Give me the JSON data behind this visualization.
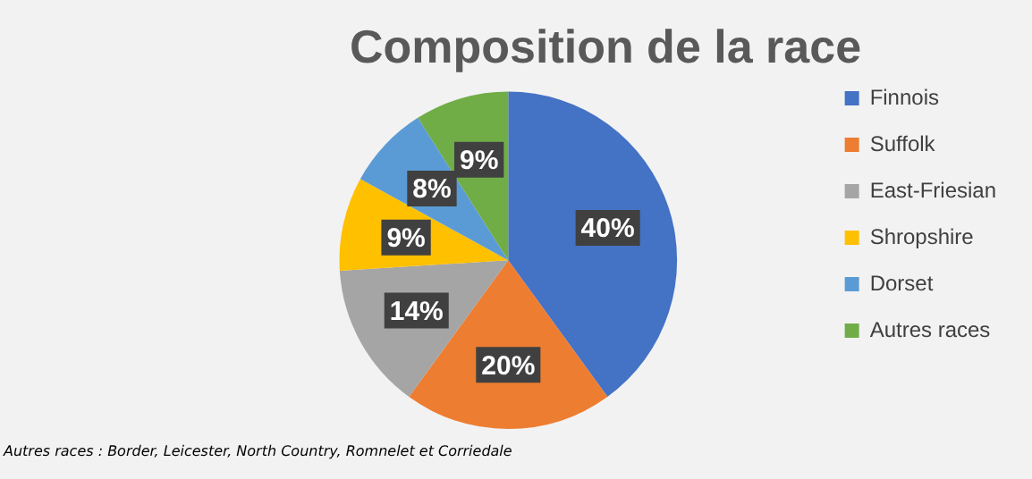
{
  "chart_data": {
    "type": "pie",
    "title": "Composition de la race",
    "categories": [
      "Finnois",
      "Suffolk",
      "East-Friesian",
      "Shropshire",
      "Dorset",
      "Autres races"
    ],
    "values": [
      40,
      20,
      14,
      9,
      8,
      9
    ],
    "value_labels": [
      "40%",
      "20%",
      "14%",
      "9%",
      "8%",
      "9%"
    ],
    "colors": [
      "#4472c4",
      "#ed7d31",
      "#a5a5a5",
      "#ffc000",
      "#5b9bd5",
      "#70ad47"
    ],
    "legend": "right",
    "annotations": [
      "Autres races : Border, Leicester, North Country, Romnelet et Corriedale"
    ]
  }
}
